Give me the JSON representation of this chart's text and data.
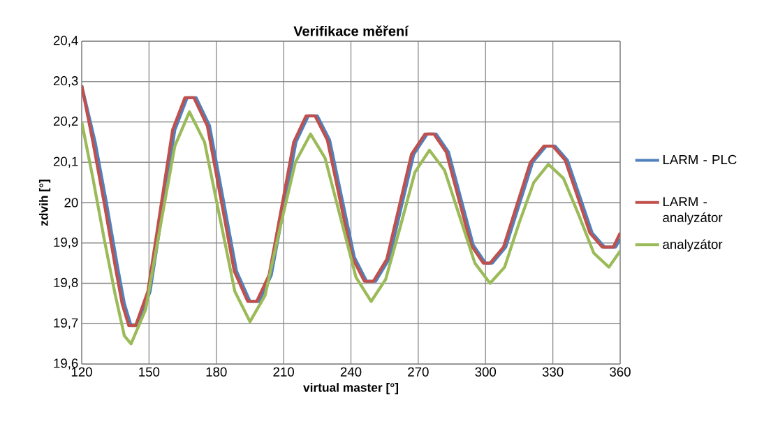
{
  "chart_data": {
    "type": "line",
    "title": "Verifikace měření",
    "xlabel": "virtual master [°]",
    "ylabel": "zdvih [°]",
    "xlim": [
      120,
      360
    ],
    "xticks": [
      120,
      150,
      180,
      210,
      240,
      270,
      300,
      330,
      360
    ],
    "ylim": [
      19.6,
      20.4
    ],
    "yticks": [
      {
        "value": 19.6,
        "label": "19,6"
      },
      {
        "value": 19.7,
        "label": "19,7"
      },
      {
        "value": 19.8,
        "label": "19,8"
      },
      {
        "value": 19.9,
        "label": "19,9"
      },
      20,
      {
        "value": 20.1,
        "label": "20,1"
      },
      {
        "value": 20.2,
        "label": "20,2"
      },
      {
        "value": 20.3,
        "label": "20,3"
      },
      {
        "value": 20.4,
        "label": "20,4"
      }
    ],
    "grid": true,
    "legend": "right",
    "marker": "none",
    "line_style": "solid",
    "series": [
      {
        "name": "LARM - PLC",
        "color": "#4f81bd",
        "x": [
          120,
          126,
          131,
          136,
          139,
          142,
          145,
          150.5,
          156,
          161.5,
          167,
          171,
          177,
          183,
          189,
          195,
          199,
          204.5,
          210,
          215.5,
          221,
          225,
          230.5,
          236,
          241.5,
          247,
          251,
          257,
          262.5,
          268,
          274,
          278,
          283.5,
          289,
          294.5,
          300,
          303,
          309,
          315,
          321,
          327,
          331,
          336.5,
          342,
          347.5,
          353,
          358,
          360
        ],
        "values": [
          20.29,
          20.15,
          20.0,
          19.84,
          19.75,
          19.695,
          19.695,
          19.78,
          19.98,
          20.18,
          20.26,
          20.26,
          20.19,
          20.01,
          19.83,
          19.755,
          19.755,
          19.82,
          19.985,
          20.15,
          20.215,
          20.215,
          20.155,
          20.01,
          19.865,
          19.805,
          19.805,
          19.86,
          19.99,
          20.12,
          20.17,
          20.17,
          20.125,
          20.01,
          19.895,
          19.85,
          19.85,
          19.89,
          19.995,
          20.1,
          20.14,
          20.14,
          20.105,
          20.015,
          19.925,
          19.89,
          19.89,
          19.91
        ]
      },
      {
        "name": "LARM - analyzátor",
        "color": "#c0504d",
        "x": [
          120,
          125,
          130,
          135,
          138,
          141,
          144,
          149.5,
          155,
          160.5,
          166,
          170,
          176,
          182,
          188,
          194,
          198,
          203.5,
          209,
          214.5,
          220,
          224,
          229.5,
          235,
          240.5,
          246,
          250,
          256,
          261.5,
          267,
          273,
          277,
          282.5,
          288,
          293.5,
          299,
          302,
          308,
          314,
          320,
          326,
          330,
          335.5,
          341,
          346.5,
          352,
          357,
          360
        ],
        "values": [
          20.29,
          20.15,
          20.0,
          19.84,
          19.75,
          19.695,
          19.695,
          19.78,
          19.98,
          20.18,
          20.26,
          20.26,
          20.19,
          20.01,
          19.83,
          19.755,
          19.755,
          19.82,
          19.985,
          20.15,
          20.215,
          20.215,
          20.155,
          20.01,
          19.865,
          19.805,
          19.805,
          19.86,
          19.99,
          20.12,
          20.17,
          20.17,
          20.125,
          20.01,
          19.895,
          19.85,
          19.85,
          19.89,
          19.995,
          20.1,
          20.14,
          20.14,
          20.105,
          20.015,
          19.925,
          19.89,
          19.89,
          19.925
        ]
      },
      {
        "name": "analyzátor",
        "color": "#9bbb59",
        "x": [
          120,
          125,
          130,
          135,
          139,
          142,
          148.5,
          155,
          161.5,
          168,
          174.75,
          181.5,
          188.25,
          195,
          201.75,
          208.5,
          215.25,
          222,
          228.5,
          235.5,
          242.25,
          249,
          255.5,
          262,
          268.5,
          275,
          281.75,
          288.5,
          295.25,
          302,
          308.5,
          315,
          321.5,
          328,
          334.75,
          341.5,
          348.25,
          355,
          360
        ],
        "values": [
          20.2,
          20.06,
          19.91,
          19.77,
          19.67,
          19.65,
          19.735,
          19.94,
          20.14,
          20.225,
          20.15,
          19.965,
          19.78,
          19.705,
          19.77,
          19.94,
          20.1,
          20.17,
          20.11,
          19.96,
          19.815,
          19.755,
          19.81,
          19.94,
          20.075,
          20.13,
          20.08,
          19.965,
          19.85,
          19.8,
          19.84,
          19.95,
          20.05,
          20.095,
          20.06,
          19.97,
          19.875,
          19.84,
          19.88
        ]
      }
    ]
  }
}
